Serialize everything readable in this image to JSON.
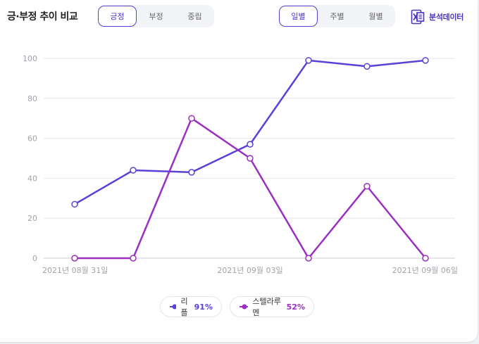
{
  "header": {
    "title": "긍·부정 추이 비교",
    "sentiment_tabs": [
      {
        "label": "긍정",
        "active": true
      },
      {
        "label": "부정",
        "active": false
      },
      {
        "label": "중립",
        "active": false
      }
    ],
    "period_tabs": [
      {
        "label": "일별",
        "active": true
      },
      {
        "label": "주별",
        "active": false
      },
      {
        "label": "월별",
        "active": false
      }
    ],
    "export_label": "분석데이터",
    "export_icon": "excel-file-icon"
  },
  "colors": {
    "accent": "#4b35c9",
    "ripple": "#5a41d8",
    "stellar": "#9b2fc1",
    "grid": "#e3e4e8",
    "axis_text": "#a0a3aa"
  },
  "legend": [
    {
      "name": "리플",
      "pct": "91%"
    },
    {
      "name": "스텔라루멘",
      "pct": "52%"
    }
  ],
  "chart_data": {
    "type": "line",
    "title": "",
    "xlabel": "",
    "ylabel": "",
    "x_tick_labels": [
      "2021년 08월 31일",
      "2021년 09월 03일",
      "2021년 09월 06일"
    ],
    "ylim": [
      0,
      100
    ],
    "yticks": [
      0,
      20,
      40,
      60,
      80,
      100
    ],
    "grid": true,
    "legend_position": "bottom",
    "point_count": 7,
    "series": [
      {
        "name": "리플",
        "color": "#5a41d8",
        "values": [
          27,
          44,
          43,
          57,
          99,
          96,
          99
        ]
      },
      {
        "name": "스텔라루멘",
        "color": "#9b2fc1",
        "values": [
          0,
          0,
          70,
          50,
          0,
          36,
          0
        ]
      }
    ]
  }
}
